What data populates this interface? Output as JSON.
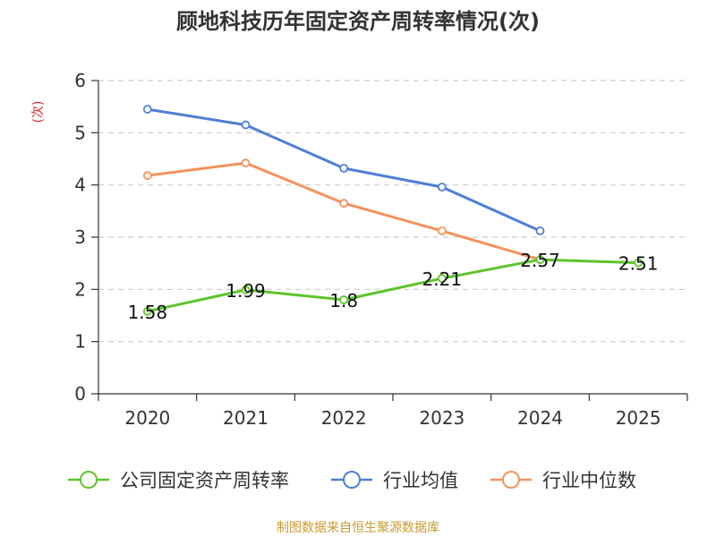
{
  "chart_data": {
    "type": "line",
    "title": "顾地科技历年固定资产周转率情况(次)",
    "ylabel": "(次)",
    "xlabel": "",
    "categories": [
      "2020",
      "2021",
      "2022",
      "2023",
      "2024",
      "2025"
    ],
    "ylim": [
      0,
      6
    ],
    "yticks": [
      0,
      1,
      2,
      3,
      4,
      5,
      6
    ],
    "grid": true,
    "legend_position": "bottom",
    "series": [
      {
        "name": "公司固定资产周转率",
        "color": "#5cc52a",
        "values": [
          1.58,
          1.99,
          1.8,
          2.21,
          2.57,
          2.51
        ],
        "labels": [
          "1.58",
          "1.99",
          "1.8",
          "2.21",
          "2.57",
          "2.51"
        ]
      },
      {
        "name": "行业均值",
        "color": "#4e7fd8",
        "values": [
          5.45,
          5.15,
          4.32,
          3.96,
          3.12,
          null
        ]
      },
      {
        "name": "行业中位数",
        "color": "#f5925a",
        "values": [
          4.18,
          4.42,
          3.65,
          3.12,
          2.57,
          null
        ]
      }
    ],
    "ylabel_color": "#e02020"
  },
  "source": {
    "text": "制图数据来自恒生聚源数据库",
    "color": "#c99a2e"
  }
}
